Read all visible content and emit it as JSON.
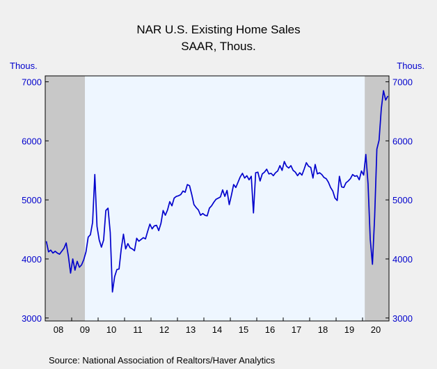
{
  "chart_data": {
    "type": "line",
    "title": "NAR U.S. Existing Home Sales",
    "subtitle": "SAAR, Thous.",
    "ylabel_left": "Thous.",
    "ylabel_right": "Thous.",
    "ylim": [
      2950,
      7100
    ],
    "yticks": [
      3000,
      4000,
      5000,
      6000,
      7000
    ],
    "x_range": [
      "2008-01",
      "2020-12"
    ],
    "x_tick_labels": [
      "08",
      "09",
      "10",
      "11",
      "12",
      "13",
      "14",
      "15",
      "16",
      "17",
      "18",
      "19",
      "20"
    ],
    "recessions": [
      [
        "2008-01",
        "2009-06"
      ],
      [
        "2020-02",
        "2020-12"
      ]
    ],
    "colors": {
      "line": "#0000cc",
      "axis_text": "#0000cc",
      "plot_bg": "#eef6ff",
      "recession": "#c8c8c8"
    },
    "series": [
      {
        "start": "2008-01",
        "values": [
          4300,
          4120,
          4150,
          4100,
          4130,
          4100,
          4080,
          4130,
          4180,
          4270,
          4050,
          3760,
          4000,
          3810,
          3960,
          3860,
          3900,
          3990,
          4120,
          4370,
          4410,
          4620,
          5430,
          4550,
          4320,
          4200,
          4320,
          4820,
          4860,
          4450,
          3440,
          3700,
          3820,
          3830,
          4170,
          4420,
          4170,
          4260,
          4190,
          4170,
          4140,
          4350,
          4300,
          4330,
          4360,
          4340,
          4470,
          4590,
          4510,
          4560,
          4570,
          4480,
          4600,
          4820,
          4740,
          4830,
          4970,
          4900,
          5030,
          5060,
          5070,
          5090,
          5150,
          5130,
          5260,
          5240,
          5090,
          4920,
          4870,
          4830,
          4740,
          4770,
          4740,
          4730,
          4860,
          4900,
          4960,
          5010,
          5030,
          5050,
          5170,
          5060,
          5160,
          4920,
          5080,
          5260,
          5210,
          5300,
          5390,
          5450,
          5370,
          5410,
          5340,
          5400,
          4780,
          5460,
          5470,
          5320,
          5440,
          5470,
          5520,
          5440,
          5450,
          5410,
          5460,
          5490,
          5580,
          5500,
          5650,
          5570,
          5540,
          5580,
          5500,
          5470,
          5410,
          5460,
          5420,
          5520,
          5630,
          5570,
          5550,
          5370,
          5600,
          5440,
          5460,
          5430,
          5380,
          5360,
          5300,
          5210,
          5150,
          5030,
          4990,
          5400,
          5220,
          5210,
          5290,
          5320,
          5360,
          5430,
          5400,
          5410,
          5340,
          5490,
          5420,
          5770,
          5270,
          4330,
          3910,
          4720,
          5860,
          6010,
          6540,
          6850,
          6690,
          6760
        ]
      }
    ]
  },
  "source_text": "Source:  National Association of Realtors/Haver Analytics"
}
